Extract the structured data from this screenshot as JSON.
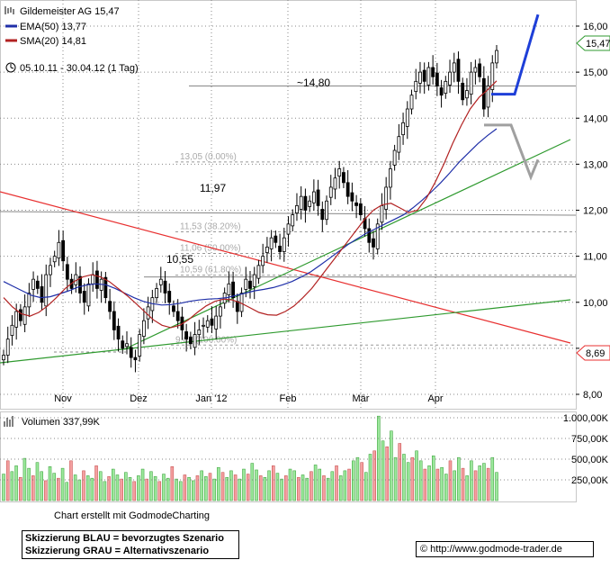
{
  "header": {
    "title": "Gildemeister AG 15,47",
    "ema_label": "EMA(50) 13,77",
    "sma_label": "SMA(20) 14,81",
    "period": "05.10.11 - 30.04.12 (1 Tag)"
  },
  "colors": {
    "price": "#000000",
    "bull": "#00cc00",
    "ema": "#1f2fa8",
    "sma": "#b22222",
    "red_trend": "#e83030",
    "green_trend": "#2f9a2f",
    "blue_scenario": "#1e3fd8",
    "grey_scenario": "#a0a0a0",
    "volume_up": "#9ce89c",
    "volume_down": "#f4a0a0"
  },
  "chart_data": {
    "type": "candlestick",
    "y_axis": {
      "ticks": [
        "8,00",
        "9,00",
        "10,00",
        "11,00",
        "12,00",
        "13,00",
        "14,00",
        "15,00",
        "16,00"
      ],
      "ylim": [
        8.0,
        16.25
      ]
    },
    "x_axis": {
      "ticks": [
        "Nov",
        "Dez",
        "Jan '12",
        "Feb",
        "Mär",
        "Apr"
      ]
    },
    "last_price_label": "15,47",
    "marker_label": "8,69",
    "annotations": [
      "~14,80",
      "11,97",
      "10,55"
    ],
    "fib_levels": [
      {
        "label": "13,05 (0.00%)",
        "value": 13.05
      },
      {
        "label": "11,53 (38.20%)",
        "value": 11.53
      },
      {
        "label": "11,06 (50.00%)",
        "value": 11.06
      },
      {
        "label": "10,59 (61.80%)",
        "value": 10.59
      },
      {
        "label": "9,07 (100.00%)",
        "value": 9.07
      }
    ],
    "horizontal_lines": [
      14.7,
      11.97,
      10.55
    ],
    "closes": [
      8.85,
      9.2,
      9.5,
      9.8,
      9.6,
      9.9,
      10.2,
      10.5,
      10.3,
      10.0,
      10.6,
      10.8,
      11.0,
      11.3,
      10.9,
      10.5,
      10.3,
      10.6,
      10.2,
      10.0,
      10.4,
      10.6,
      10.3,
      10.5,
      10.1,
      9.8,
      9.4,
      9.2,
      9.0,
      9.1,
      8.8,
      8.75,
      9.3,
      9.6,
      9.9,
      10.1,
      10.3,
      10.5,
      10.2,
      10.0,
      9.8,
      9.6,
      9.4,
      9.2,
      9.1,
      9.3,
      9.4,
      9.5,
      9.6,
      9.5,
      9.7,
      9.9,
      10.2,
      10.4,
      10.1,
      9.8,
      10.2,
      10.5,
      10.3,
      10.6,
      10.8,
      11.0,
      11.2,
      11.4,
      11.3,
      11.1,
      11.4,
      11.7,
      11.9,
      12.1,
      12.3,
      12.0,
      12.2,
      12.4,
      12.1,
      11.8,
      12.2,
      12.5,
      12.7,
      12.9,
      12.6,
      12.3,
      12.2,
      12.1,
      11.9,
      11.6,
      11.3,
      11.2,
      11.7,
      12.1,
      12.5,
      12.9,
      13.3,
      13.6,
      13.9,
      14.2,
      14.5,
      14.8,
      15.0,
      14.8,
      15.1,
      14.9,
      14.7,
      14.5,
      14.8,
      15.0,
      15.2,
      14.8,
      14.4,
      14.6,
      15.0,
      15.1,
      14.9,
      14.2,
      14.7,
      15.2,
      15.47
    ],
    "ema50": [
      10.45,
      10.35,
      10.25,
      10.15,
      10.1,
      10.12,
      10.18,
      10.25,
      10.33,
      10.38,
      10.4,
      10.38,
      10.3,
      10.2,
      10.1,
      10.02,
      9.97,
      9.94,
      9.95,
      9.98,
      10.02,
      10.05,
      10.07,
      10.08,
      10.1,
      10.15,
      10.2,
      10.25,
      10.28,
      10.32,
      10.38,
      10.45,
      10.55,
      10.66,
      10.8,
      10.95,
      11.1,
      11.25,
      11.38,
      11.5,
      11.6,
      11.7,
      11.8,
      11.9,
      12.05,
      12.22,
      12.4,
      12.6,
      12.82,
      13.05,
      13.25,
      13.45,
      13.62,
      13.77
    ],
    "sma20": [
      10.1,
      9.9,
      9.75,
      9.7,
      9.78,
      9.92,
      10.1,
      10.3,
      10.45,
      10.55,
      10.6,
      10.55,
      10.45,
      10.3,
      10.15,
      9.98,
      9.8,
      9.62,
      9.5,
      9.45,
      9.5,
      9.62,
      9.78,
      9.92,
      10.02,
      10.07,
      10.05,
      9.98,
      9.88,
      9.78,
      9.73,
      9.72,
      9.8,
      9.92,
      10.1,
      10.3,
      10.55,
      10.8,
      11.05,
      11.3,
      11.55,
      11.8,
      12.0,
      12.12,
      12.15,
      12.05,
      11.95,
      12.0,
      12.25,
      12.6,
      13.0,
      13.45,
      13.85,
      14.2,
      14.45,
      14.62,
      14.81
    ],
    "volume": {
      "label": "Volumen 337,99K",
      "ticks": [
        "1.000,00K",
        "750,00K",
        "500,00K",
        "250,00K"
      ],
      "ylim": [
        0,
        1000
      ],
      "values": [
        320,
        480,
        350,
        420,
        280,
        510,
        390,
        300,
        460,
        350,
        240,
        410,
        330,
        270,
        390,
        220,
        480,
        310,
        250,
        360,
        300,
        270,
        420,
        350,
        230,
        290,
        380,
        310,
        260,
        340,
        280,
        230,
        300,
        380,
        260,
        350,
        290,
        230,
        320,
        270,
        410,
        260,
        230,
        310,
        280,
        240,
        300,
        360,
        290,
        330,
        260,
        400,
        340,
        280,
        360,
        310,
        260,
        380,
        320,
        450,
        370,
        300,
        280,
        360,
        420,
        330,
        260,
        300,
        380,
        360,
        280,
        310,
        270,
        350,
        430,
        380,
        300,
        270,
        350,
        420,
        300,
        360,
        380,
        480,
        520,
        460,
        340,
        560,
        600,
        1020,
        720,
        650,
        840,
        520,
        690,
        560,
        460,
        520,
        600,
        480,
        380,
        420,
        540,
        380,
        400,
        320,
        480,
        360,
        520,
        390,
        300,
        480,
        360,
        420,
        450,
        390,
        520,
        340
      ]
    }
  },
  "footer": {
    "credit": "Chart erstellt mit GodmodeCharting",
    "note_line1": "Skizzierung BLAU = bevorzugtes Szenario",
    "note_line2": "Skizzierung GRAU = Alternativszenario",
    "url": "© http://www.godmode-trader.de"
  }
}
